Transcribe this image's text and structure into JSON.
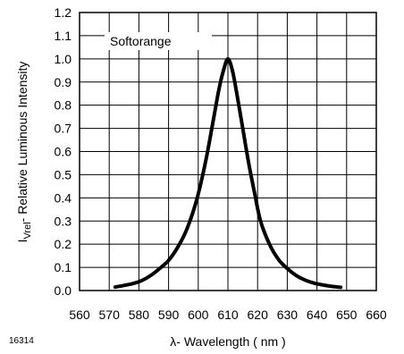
{
  "figure_id": "16314",
  "chart_data": {
    "type": "line",
    "xlabel_prefix": "λ",
    "xlabel": "- Wavelength ( nm )",
    "ylabel_symbol": "I",
    "ylabel_subscript": "Vrel",
    "ylabel": "- Relative Luminous Intensity",
    "xlim": [
      560,
      660
    ],
    "ylim": [
      0,
      1.2
    ],
    "x_ticks": [
      "560",
      "570",
      "580",
      "590",
      "600",
      "610",
      "620",
      "630",
      "640",
      "650",
      "660"
    ],
    "y_ticks": [
      "0.0",
      "0.1",
      "0.2",
      "0.3",
      "0.4",
      "0.5",
      "0.6",
      "0.7",
      "0.8",
      "0.9",
      "1.0",
      "1.1",
      "1.2"
    ],
    "grid": true,
    "series": [
      {
        "name": "Softorange",
        "color": "#000000",
        "x": [
          572,
          575,
          578,
          581,
          584,
          587,
          590,
          593,
          596,
          599,
          601,
          603,
          605,
          607,
          608.5,
          610,
          611.5,
          613,
          615,
          617,
          619,
          621,
          624,
          627,
          630,
          633,
          636,
          639,
          642,
          645,
          648
        ],
        "y": [
          0.015,
          0.022,
          0.03,
          0.043,
          0.065,
          0.095,
          0.13,
          0.185,
          0.26,
          0.37,
          0.47,
          0.59,
          0.73,
          0.87,
          0.95,
          1.0,
          0.95,
          0.85,
          0.7,
          0.55,
          0.42,
          0.3,
          0.2,
          0.135,
          0.095,
          0.065,
          0.045,
          0.032,
          0.024,
          0.018,
          0.014
        ]
      }
    ]
  }
}
